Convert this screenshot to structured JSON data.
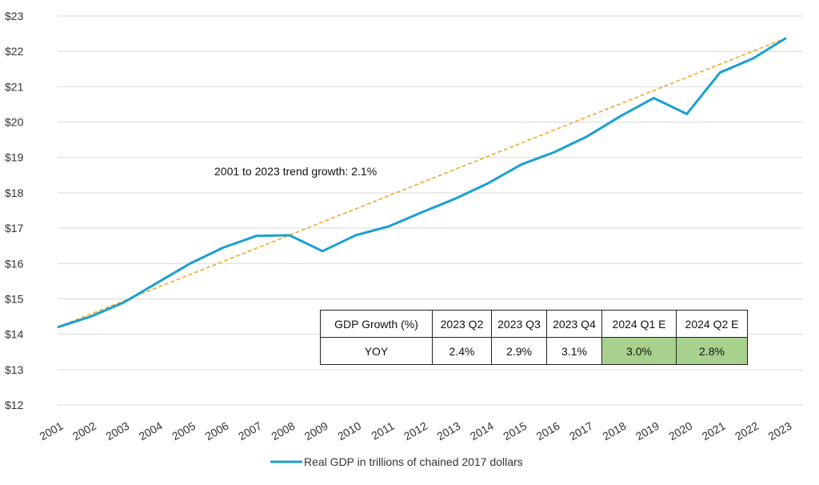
{
  "chart_data": {
    "type": "line",
    "title": "",
    "xlabel": "",
    "ylabel": "",
    "x": [
      "2001",
      "2002",
      "2003",
      "2004",
      "2005",
      "2006",
      "2007",
      "2008",
      "2009",
      "2010",
      "2011",
      "2012",
      "2013",
      "2014",
      "2015",
      "2016",
      "2017",
      "2018",
      "2019",
      "2020",
      "2021",
      "2022",
      "2023"
    ],
    "series": [
      {
        "name": "Real GDP in trillions of chained 2017 dollars",
        "color": "#1aa0cf",
        "values": [
          14.2,
          14.5,
          14.9,
          15.45,
          16.0,
          16.45,
          16.78,
          16.8,
          16.35,
          16.8,
          17.05,
          17.45,
          17.83,
          18.27,
          18.8,
          19.15,
          19.6,
          20.17,
          20.68,
          20.23,
          21.4,
          21.8,
          22.38
        ]
      },
      {
        "name": "",
        "style": "dashed",
        "color": "#f0a830",
        "values": [
          14.2,
          22.38
        ],
        "x": [
          "2001",
          "2023"
        ]
      }
    ],
    "ylim": [
      12,
      23
    ],
    "yticks": [
      "$12",
      "$13",
      "$14",
      "$15",
      "$16",
      "$17",
      "$18",
      "$19",
      "$20",
      "$21",
      "$22",
      "$23"
    ],
    "grid": "horizontal",
    "legend": "bottom-center",
    "annotation": "2001 to 2023 trend growth: 2.1%"
  },
  "table": {
    "header_label": "GDP Growth (%)",
    "columns": [
      "2023 Q2",
      "2023 Q3",
      "2023 Q4",
      "2024 Q1 E",
      "2024 Q2 E"
    ],
    "row_label": "YOY",
    "values": [
      "2.4%",
      "2.9%",
      "3.1%",
      "3.0%",
      "2.8%"
    ],
    "estimate_color": "#a9d18e"
  }
}
